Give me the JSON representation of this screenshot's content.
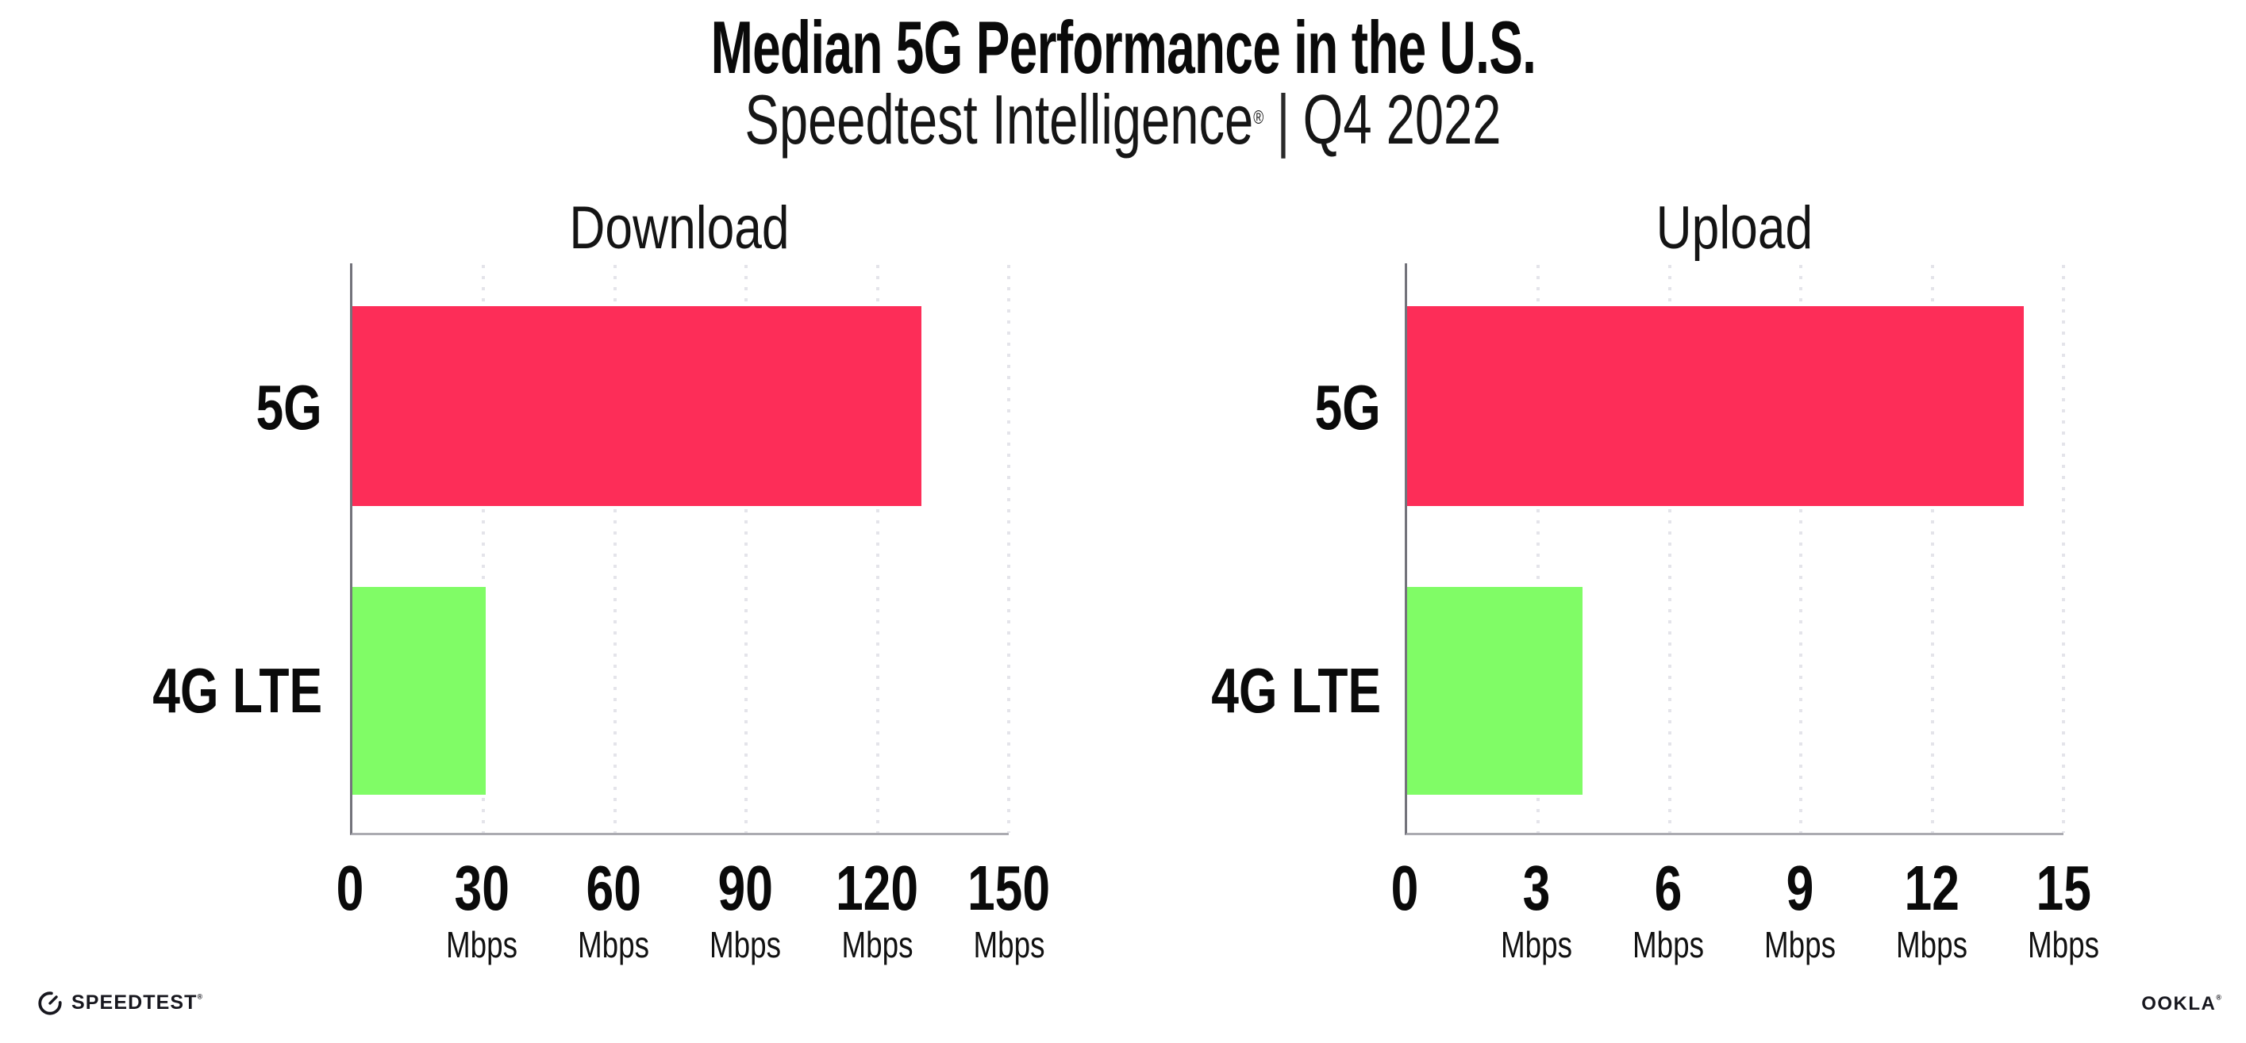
{
  "header": {
    "title": "Median 5G Performance in the U.S.",
    "subtitle": {
      "product": "Speedtest Intelligence",
      "registered": "®",
      "separator": "|",
      "period": "Q4 2022"
    }
  },
  "chart_data": [
    {
      "type": "bar",
      "orientation": "horizontal",
      "title": "Download",
      "categories": [
        "5G",
        "4G LTE"
      ],
      "values": [
        130,
        30.4
      ],
      "unit": "Mbps",
      "xlim": [
        0,
        150
      ],
      "grid": "vertical-dotted",
      "xticks": [
        {
          "label": "0",
          "unit": ""
        },
        {
          "label": "30",
          "unit": "Mbps"
        },
        {
          "label": "60",
          "unit": "Mbps"
        },
        {
          "label": "90",
          "unit": "Mbps"
        },
        {
          "label": "120",
          "unit": "Mbps"
        },
        {
          "label": "150",
          "unit": "Mbps"
        }
      ],
      "bars": [
        {
          "label": "5G",
          "value": 130,
          "color": "#FD2D58"
        },
        {
          "label": "4G LTE",
          "value": 30.4,
          "color": "#80FC66"
        }
      ]
    },
    {
      "type": "bar",
      "orientation": "horizontal",
      "title": "Upload",
      "categories": [
        "5G",
        "4G LTE"
      ],
      "values": [
        14.1,
        4.0
      ],
      "unit": "Mbps",
      "xlim": [
        0,
        15
      ],
      "grid": "vertical-dotted",
      "xticks": [
        {
          "label": "0",
          "unit": ""
        },
        {
          "label": "3",
          "unit": "Mbps"
        },
        {
          "label": "6",
          "unit": "Mbps"
        },
        {
          "label": "9",
          "unit": "Mbps"
        },
        {
          "label": "12",
          "unit": "Mbps"
        },
        {
          "label": "15",
          "unit": "Mbps"
        }
      ],
      "bars": [
        {
          "label": "5G",
          "value": 14.1,
          "color": "#FD2D58"
        },
        {
          "label": "4G LTE",
          "value": 4.0,
          "color": "#80FC66"
        }
      ]
    }
  ],
  "footer": {
    "speedtest_icon": "speedtest-gauge-icon",
    "speedtest_wordmark": "SPEEDTEST",
    "speedtest_registered": "®",
    "ookla_wordmark": "OOKLA",
    "ookla_registered": "®"
  },
  "colors": {
    "bar_5g": "#FD2D58",
    "bar_4g_lte": "#80FC66",
    "x_axis": "#ABABB1",
    "y_axis": "#73737B",
    "gridline": "#E4E4EA",
    "text": "#0D0D0D",
    "logo": "#17171E",
    "background": "#FFFFFF"
  }
}
